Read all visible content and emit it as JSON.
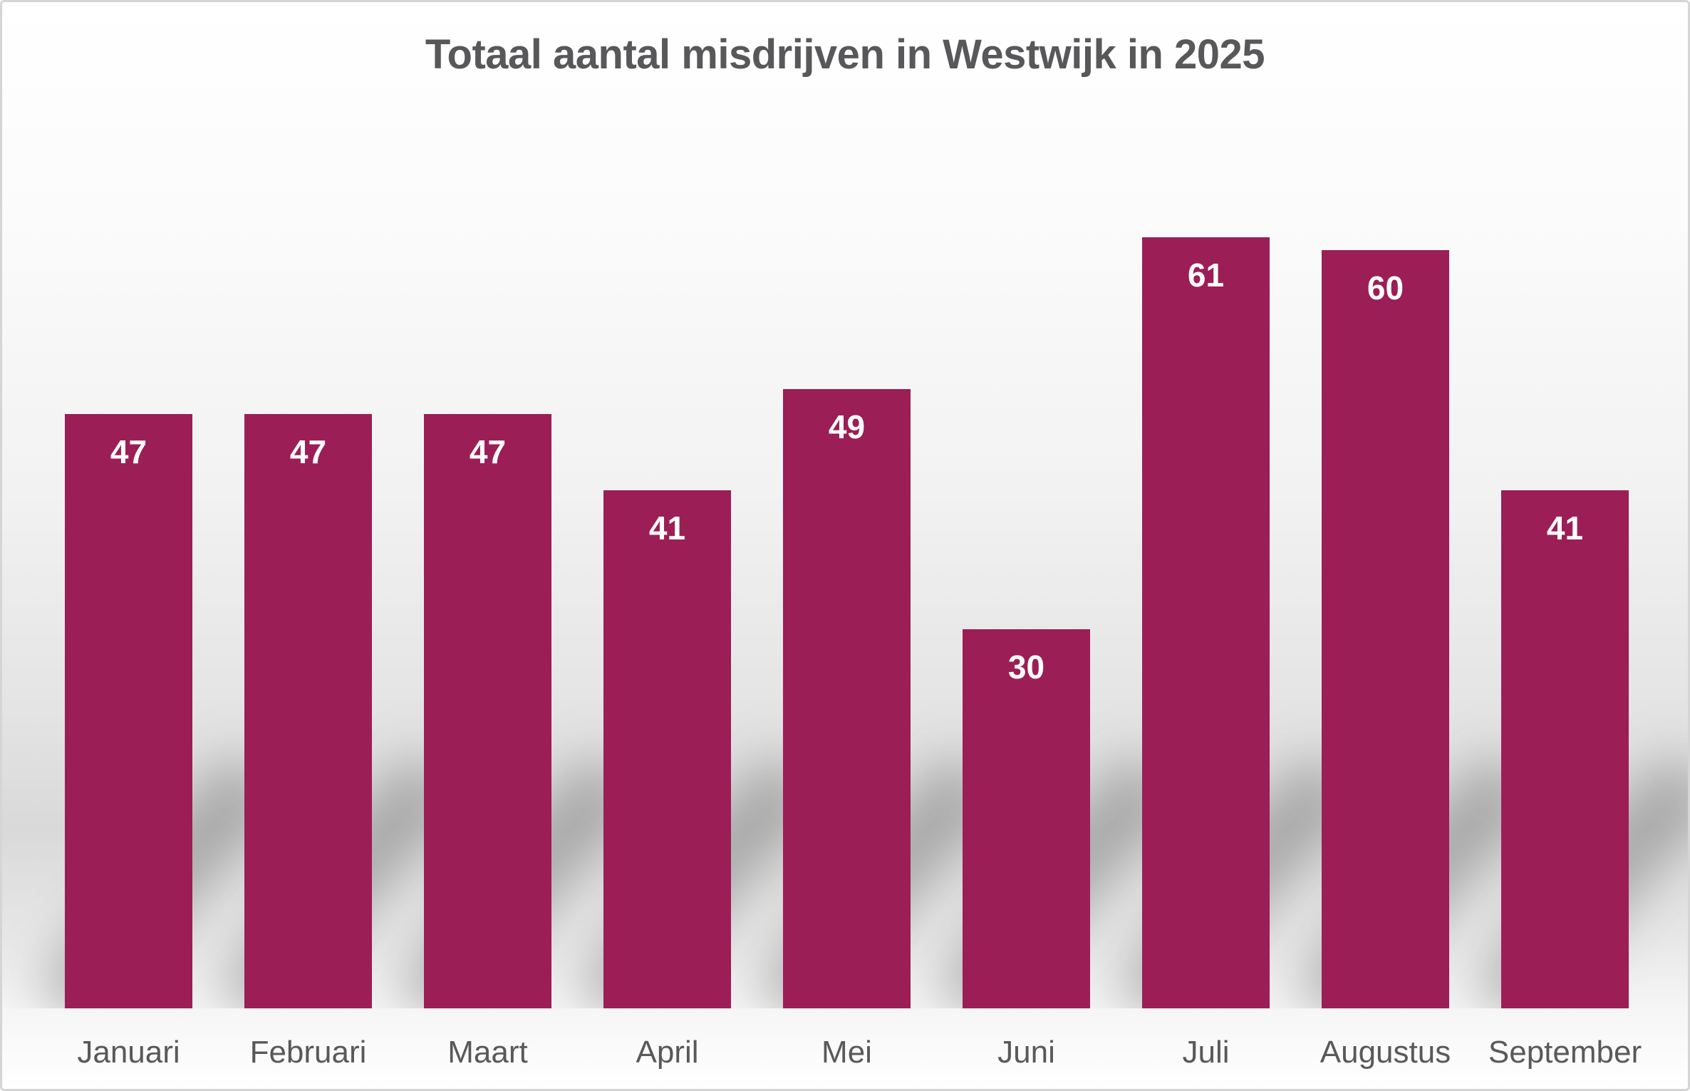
{
  "title": "Totaal aantal misdrijven in Westwijk in 2025",
  "chart_data": {
    "type": "bar",
    "title": "Totaal aantal misdrijven in Westwijk in 2025",
    "categories": [
      "Januari",
      "Februari",
      "Maart",
      "April",
      "Mei",
      "Juni",
      "Juli",
      "Augustus",
      "September"
    ],
    "values": [
      47,
      47,
      47,
      41,
      49,
      30,
      61,
      60,
      41
    ],
    "xlabel": "",
    "ylabel": "",
    "ylim": [
      0,
      65
    ],
    "grid": false,
    "legend": false,
    "data_labels": "inside-top"
  },
  "colors": {
    "bar": "#9c1e56",
    "value_label": "#ffffff",
    "title_text": "#58585a",
    "axis_label_text": "#595959",
    "border": "#d5d5d5",
    "background_top": "#ffffff",
    "background_mid": "#d9d9d9",
    "background_bottom": "#ffffff"
  }
}
